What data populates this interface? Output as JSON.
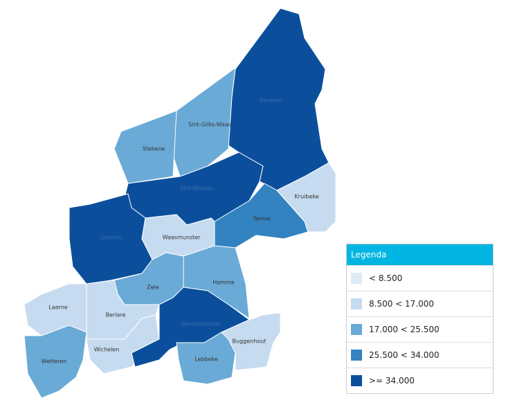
{
  "map": {
    "regions": [
      {
        "name": "Beveren",
        "color": "#0b4f9c"
      },
      {
        "name": "Sint-Gillis-Waas",
        "color": "#6aaad6"
      },
      {
        "name": "Stekene",
        "color": "#6aaad6"
      },
      {
        "name": "Sint-Niklaas",
        "color": "#0b4f9c"
      },
      {
        "name": "Lokeren",
        "color": "#0b4f9c"
      },
      {
        "name": "Waasmunster",
        "color": "#c6dbef"
      },
      {
        "name": "Temse",
        "color": "#3383c0"
      },
      {
        "name": "Kruibeke",
        "color": "#c6dbef"
      },
      {
        "name": "Hamme",
        "color": "#6aaad6"
      },
      {
        "name": "Zele",
        "color": "#6aaad6"
      },
      {
        "name": "Laarne",
        "color": "#c6dbef"
      },
      {
        "name": "Berlare",
        "color": "#c6dbef"
      },
      {
        "name": "Wichelen",
        "color": "#c6dbef"
      },
      {
        "name": "Wetteren",
        "color": "#6aaad6"
      },
      {
        "name": "Dendermonde",
        "color": "#0b4f9c"
      },
      {
        "name": "Lebbeke",
        "color": "#6aaad6"
      },
      {
        "name": "Buggenhout",
        "color": "#c6dbef"
      }
    ]
  },
  "legend": {
    "title": "Legenda",
    "items": [
      {
        "label": "< 8.500",
        "color": "#deebf7"
      },
      {
        "label": "8.500 < 17.000",
        "color": "#c6dbef"
      },
      {
        "label": "17.000 < 25.500",
        "color": "#6aaad6"
      },
      {
        "label": "25.500 < 34.000",
        "color": "#3383c0"
      },
      {
        "label": ">= 34.000",
        "color": "#0b4f9c"
      }
    ]
  }
}
